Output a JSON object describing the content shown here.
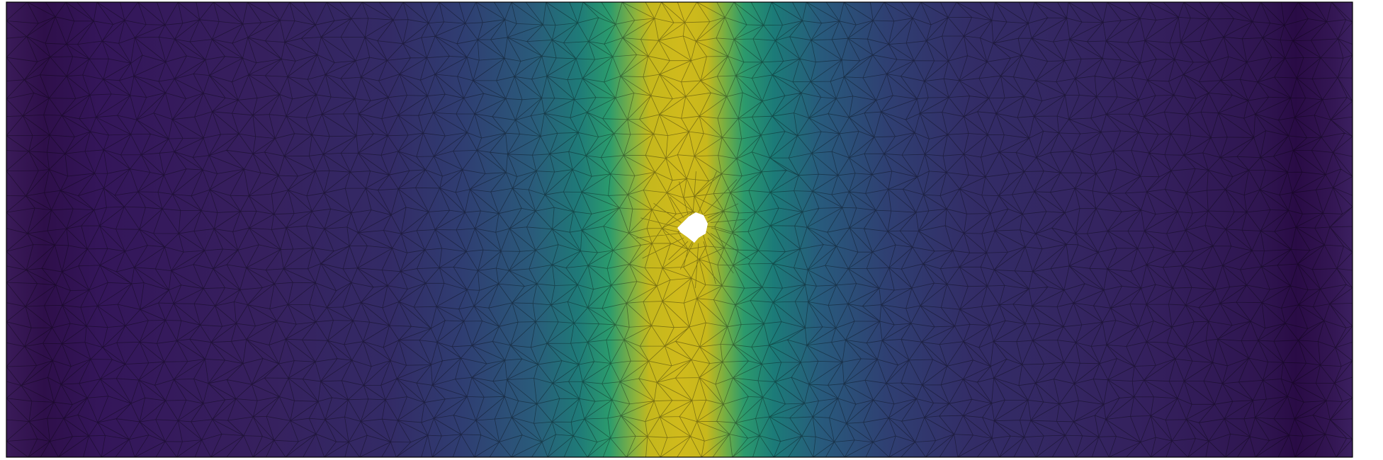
{
  "scene": {
    "colormap": "viridis",
    "colors": {
      "background": "#ffffff",
      "frame": "#000000",
      "mesh_edge": "#000000",
      "hole_fill": "#ffffff"
    },
    "mesh": "triangular-unstructured",
    "field_shape": "vertical-band-peak-center-with-hole",
    "hole": "small-irregular-hole-at-center"
  }
}
